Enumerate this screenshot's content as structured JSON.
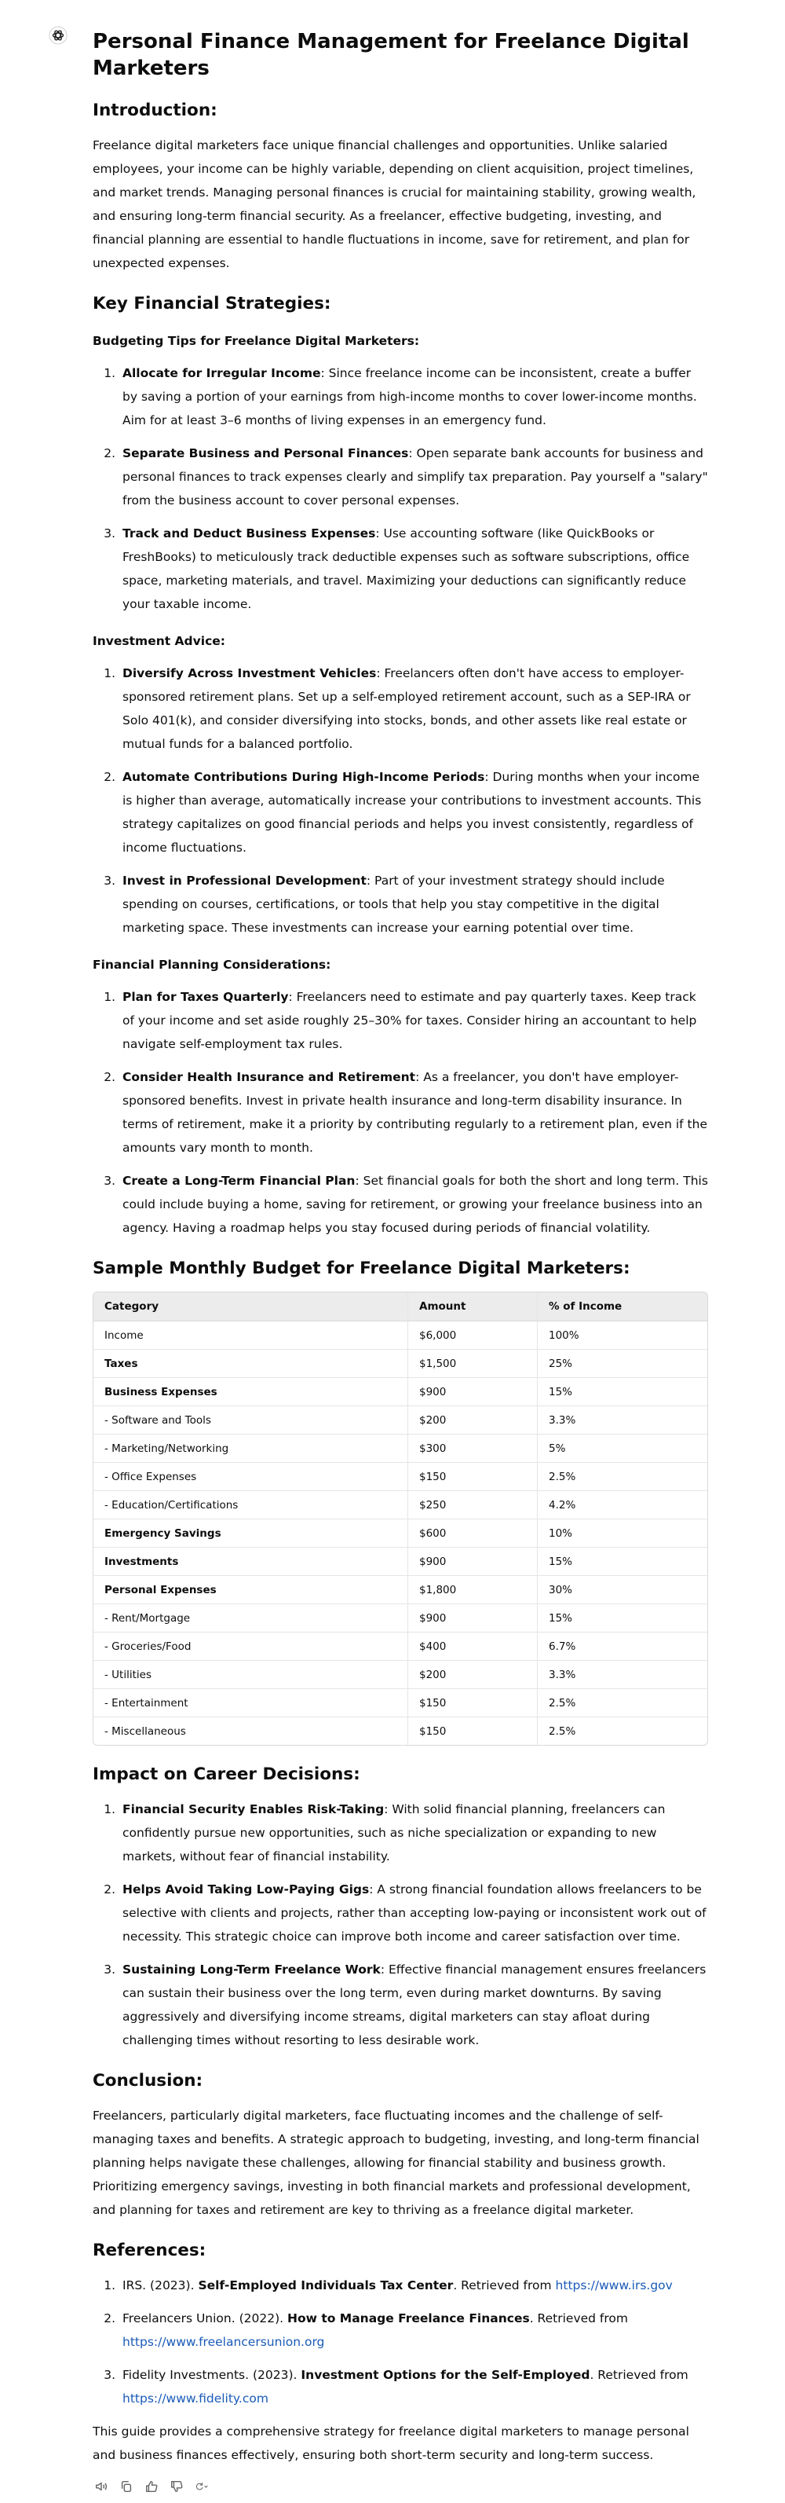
{
  "title": "Personal Finance Management for Freelance Digital Marketers",
  "intro": {
    "heading": "Introduction:",
    "text": "Freelance digital marketers face unique financial challenges and opportunities. Unlike salaried employees, your income can be highly variable, depending on client acquisition, project timelines, and market trends. Managing personal finances is crucial for maintaining stability, growing wealth, and ensuring long-term financial security. As a freelancer, effective budgeting, investing, and financial planning are essential to handle fluctuations in income, save for retirement, and plan for unexpected expenses."
  },
  "strategies": {
    "heading": "Key Financial Strategies:",
    "budgeting": {
      "heading": "Budgeting Tips for Freelance Digital Marketers:",
      "items": [
        {
          "title": "Allocate for Irregular Income",
          "text": ": Since freelance income can be inconsistent, create a buffer by saving a portion of your earnings from high-income months to cover lower-income months. Aim for at least 3–6 months of living expenses in an emergency fund."
        },
        {
          "title": "Separate Business and Personal Finances",
          "text": ": Open separate bank accounts for business and personal finances to track expenses clearly and simplify tax preparation. Pay yourself a \"salary\" from the business account to cover personal expenses."
        },
        {
          "title": "Track and Deduct Business Expenses",
          "text": ": Use accounting software (like QuickBooks or FreshBooks) to meticulously track deductible expenses such as software subscriptions, office space, marketing materials, and travel. Maximizing your deductions can significantly reduce your taxable income."
        }
      ]
    },
    "investment": {
      "heading": "Investment Advice:",
      "items": [
        {
          "title": "Diversify Across Investment Vehicles",
          "text": ": Freelancers often don't have access to employer-sponsored retirement plans. Set up a self-employed retirement account, such as a SEP-IRA or Solo 401(k), and consider diversifying into stocks, bonds, and other assets like real estate or mutual funds for a balanced portfolio."
        },
        {
          "title": "Automate Contributions During High-Income Periods",
          "text": ": During months when your income is higher than average, automatically increase your contributions to investment accounts. This strategy capitalizes on good financial periods and helps you invest consistently, regardless of income fluctuations."
        },
        {
          "title": "Invest in Professional Development",
          "text": ": Part of your investment strategy should include spending on courses, certifications, or tools that help you stay competitive in the digital marketing space. These investments can increase your earning potential over time."
        }
      ]
    },
    "planning": {
      "heading": "Financial Planning Considerations:",
      "items": [
        {
          "title": "Plan for Taxes Quarterly",
          "text": ": Freelancers need to estimate and pay quarterly taxes. Keep track of your income and set aside roughly 25–30% for taxes. Consider hiring an accountant to help navigate self-employment tax rules."
        },
        {
          "title": "Consider Health Insurance and Retirement",
          "text": ": As a freelancer, you don't have employer-sponsored benefits. Invest in private health insurance and long-term disability insurance. In terms of retirement, make it a priority by contributing regularly to a retirement plan, even if the amounts vary month to month."
        },
        {
          "title": "Create a Long-Term Financial Plan",
          "text": ": Set financial goals for both the short and long term. This could include buying a home, saving for retirement, or growing your freelance business into an agency. Having a roadmap helps you stay focused during periods of financial volatility."
        }
      ]
    }
  },
  "budget": {
    "heading": "Sample Monthly Budget for Freelance Digital Marketers:",
    "columns": [
      "Category",
      "Amount",
      "% of Income"
    ],
    "rows": [
      {
        "category": "Income",
        "amount": "$6,000",
        "percent": "100%",
        "bold": false
      },
      {
        "category": "Taxes",
        "amount": "$1,500",
        "percent": "25%",
        "bold": true
      },
      {
        "category": "Business Expenses",
        "amount": "$900",
        "percent": "15%",
        "bold": true
      },
      {
        "category": "- Software and Tools",
        "amount": "$200",
        "percent": "3.3%",
        "bold": false
      },
      {
        "category": "- Marketing/Networking",
        "amount": "$300",
        "percent": "5%",
        "bold": false
      },
      {
        "category": "- Office Expenses",
        "amount": "$150",
        "percent": "2.5%",
        "bold": false
      },
      {
        "category": "- Education/Certifications",
        "amount": "$250",
        "percent": "4.2%",
        "bold": false
      },
      {
        "category": "Emergency Savings",
        "amount": "$600",
        "percent": "10%",
        "bold": true
      },
      {
        "category": "Investments",
        "amount": "$900",
        "percent": "15%",
        "bold": true
      },
      {
        "category": "Personal Expenses",
        "amount": "$1,800",
        "percent": "30%",
        "bold": true
      },
      {
        "category": "- Rent/Mortgage",
        "amount": "$900",
        "percent": "15%",
        "bold": false
      },
      {
        "category": "- Groceries/Food",
        "amount": "$400",
        "percent": "6.7%",
        "bold": false
      },
      {
        "category": "- Utilities",
        "amount": "$200",
        "percent": "3.3%",
        "bold": false
      },
      {
        "category": "- Entertainment",
        "amount": "$150",
        "percent": "2.5%",
        "bold": false
      },
      {
        "category": "- Miscellaneous",
        "amount": "$150",
        "percent": "2.5%",
        "bold": false
      }
    ]
  },
  "career": {
    "heading": "Impact on Career Decisions:",
    "items": [
      {
        "title": "Financial Security Enables Risk-Taking",
        "text": ": With solid financial planning, freelancers can confidently pursue new opportunities, such as niche specialization or expanding to new markets, without fear of financial instability."
      },
      {
        "title": "Helps Avoid Taking Low-Paying Gigs",
        "text": ": A strong financial foundation allows freelancers to be selective with clients and projects, rather than accepting low-paying or inconsistent work out of necessity. This strategic choice can improve both income and career satisfaction over time."
      },
      {
        "title": "Sustaining Long-Term Freelance Work",
        "text": ": Effective financial management ensures freelancers can sustain their business over the long term, even during market downturns. By saving aggressively and diversifying income streams, digital marketers can stay afloat during challenging times without resorting to less desirable work."
      }
    ]
  },
  "conclusion": {
    "heading": "Conclusion:",
    "text": "Freelancers, particularly digital marketers, face fluctuating incomes and the challenge of self-managing taxes and benefits. A strategic approach to budgeting, investing, and long-term financial planning helps navigate these challenges, allowing for financial stability and business growth. Prioritizing emergency savings, investing in both financial markets and professional development, and planning for taxes and retirement are key to thriving as a freelance digital marketer."
  },
  "references": {
    "heading": "References:",
    "items": [
      {
        "prefix": "IRS. (2023). ",
        "title": "Self-Employed Individuals Tax Center",
        "middle": ". Retrieved from ",
        "url": "https://www.irs.gov"
      },
      {
        "prefix": "Freelancers Union. (2022). ",
        "title": "How to Manage Freelance Finances",
        "middle": ". Retrieved from ",
        "url": "https://www.freelancersunion.org"
      },
      {
        "prefix": "Fidelity Investments. (2023). ",
        "title": "Investment Options for the Self-Employed",
        "middle": ". Retrieved from ",
        "url": "https://www.fidelity.com"
      }
    ]
  },
  "closing": "This guide provides a comprehensive strategy for freelance digital marketers to manage personal and business finances effectively, ensuring both short-term security and long-term success.",
  "actions": [
    {
      "name": "read-aloud-icon"
    },
    {
      "name": "copy-icon"
    },
    {
      "name": "thumbs-up-icon"
    },
    {
      "name": "thumbs-down-icon"
    },
    {
      "name": "regenerate-icon"
    }
  ]
}
